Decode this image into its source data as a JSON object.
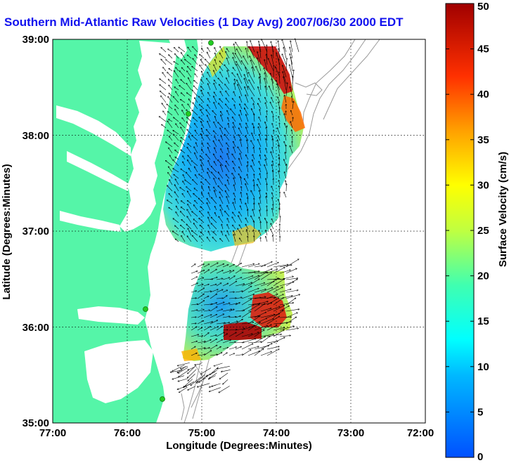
{
  "title": "Southern Mid-Atlantic Raw Velocities (1 Day Avg) 2007/06/30 2000 EDT",
  "colors": {
    "land": "#55f5a8",
    "water": "#ffffff",
    "bathymetry": "#9a9a9a",
    "station": "#22cc22",
    "title": "#1111ee"
  },
  "chart_data": {
    "type": "heatmap",
    "xlabel": "Longitude (Degrees:Minutes)",
    "ylabel": "Latitude (Degrees:Minutes)",
    "x_ticks": [
      "77:00",
      "76:00",
      "75:00",
      "74:00",
      "73:00",
      "72:00"
    ],
    "y_ticks": [
      "39:00",
      "38:00",
      "37:00",
      "36:00",
      "35:00"
    ],
    "xlim": [
      -77,
      -72
    ],
    "ylim": [
      35,
      39
    ],
    "grid": true,
    "colorbar": {
      "label": "Surface Velocity (cm/s)",
      "min": 0,
      "max": 50,
      "ticks": [
        "0",
        "5",
        "10",
        "15",
        "20",
        "25",
        "30",
        "35",
        "40",
        "45",
        "50"
      ]
    }
  }
}
